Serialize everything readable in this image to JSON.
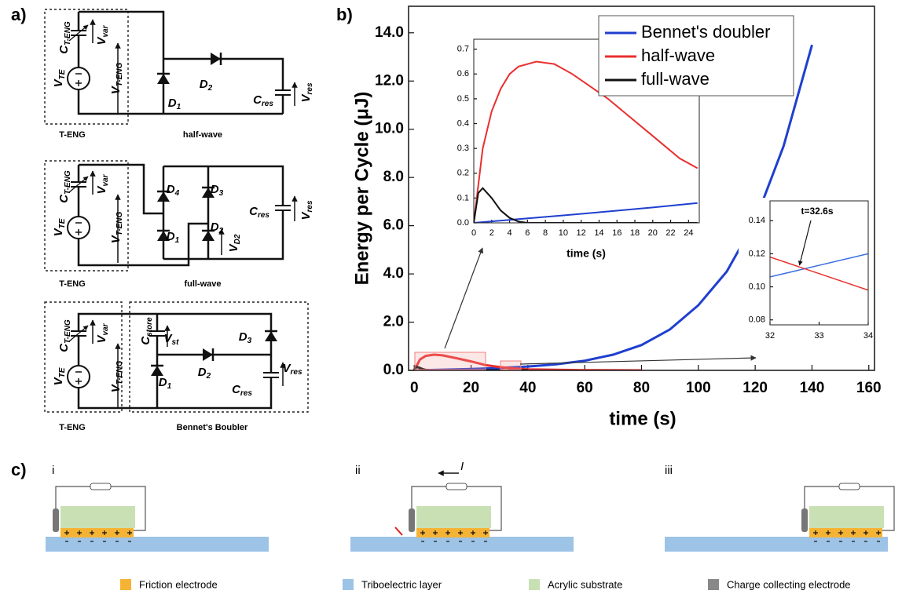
{
  "panel_labels": {
    "a": "a)",
    "b": "b)",
    "c": "c)"
  },
  "circuits": [
    {
      "labels": [
        {
          "base": "V",
          "sub": "TE"
        },
        {
          "base": "C",
          "sub": "T-ENG"
        },
        {
          "base": "V",
          "sub": "var"
        },
        {
          "base": "V",
          "sub": "T-ENG"
        },
        {
          "base": "D",
          "sub": "1"
        },
        {
          "base": "D",
          "sub": "2"
        },
        {
          "base": "C",
          "sub": "res"
        },
        {
          "base": "V",
          "sub": "res"
        }
      ],
      "source_label": "T-ENG",
      "caption": "half-wave"
    },
    {
      "labels": [
        {
          "base": "V",
          "sub": "TE"
        },
        {
          "base": "C",
          "sub": "T-ENG"
        },
        {
          "base": "V",
          "sub": "var"
        },
        {
          "base": "V",
          "sub": "T-ENG"
        },
        {
          "base": "D",
          "sub": "4"
        },
        {
          "base": "D",
          "sub": "3"
        },
        {
          "base": "D",
          "sub": "1"
        },
        {
          "base": "D",
          "sub": "2"
        },
        {
          "base": "V",
          "sub": "D2"
        },
        {
          "base": "C",
          "sub": "res"
        },
        {
          "base": "V",
          "sub": "res"
        }
      ],
      "source_label": "T-ENG",
      "caption": "full-wave"
    },
    {
      "labels": [
        {
          "base": "V",
          "sub": "TE"
        },
        {
          "base": "C",
          "sub": "T-ENG"
        },
        {
          "base": "V",
          "sub": "var"
        },
        {
          "base": "V",
          "sub": "T-ENG"
        },
        {
          "base": "C",
          "sub": "store"
        },
        {
          "base": "V",
          "sub": "st"
        },
        {
          "base": "D",
          "sub": "2"
        },
        {
          "base": "D",
          "sub": "3"
        },
        {
          "base": "D",
          "sub": "1"
        },
        {
          "base": "C",
          "sub": "res"
        },
        {
          "base": "V",
          "sub": "res"
        }
      ],
      "source_label": "T-ENG",
      "caption": "Bennet's Boubler"
    }
  ],
  "chart_data": [
    {
      "type": "line",
      "xlabel": "time (s)",
      "ylabel": "Energy per Cycle (μJ)",
      "xlim": [
        -2,
        162
      ],
      "xticks": [
        0,
        20,
        40,
        60,
        80,
        100,
        120,
        140,
        160
      ],
      "ylim": [
        0,
        15.1
      ],
      "yticks": [
        {
          "value": 0,
          "label": "0.0"
        },
        {
          "value": 2,
          "label": "2.0"
        },
        {
          "value": 4,
          "label": "4.0"
        },
        {
          "value": 6,
          "label": "6.0"
        },
        {
          "value": 8,
          "label": "8.0"
        },
        {
          "value": 10,
          "label": "10.0"
        },
        {
          "value": 12,
          "label": "12.0"
        },
        {
          "value": 14,
          "label": "14.0"
        }
      ],
      "legend_position": "upper right",
      "series": [
        {
          "name": "Bennet's doubler",
          "color": "#1f3fcf",
          "x": [
            0,
            10,
            20,
            30,
            40,
            50,
            60,
            70,
            80,
            90,
            100,
            110,
            120,
            130,
            140
          ],
          "values": [
            0,
            0.03,
            0.06,
            0.1,
            0.16,
            0.25,
            0.4,
            0.65,
            1.05,
            1.7,
            2.7,
            4.1,
            6.2,
            9.3,
            13.5
          ]
        },
        {
          "name": "half-wave",
          "color": "#e8302f",
          "x": [
            0,
            2,
            4,
            7,
            10,
            15,
            20,
            25,
            30,
            32.6,
            35,
            40,
            60,
            80
          ],
          "values": [
            0,
            0.45,
            0.6,
            0.65,
            0.62,
            0.5,
            0.37,
            0.22,
            0.14,
            0.11,
            0.08,
            0.04,
            0.01,
            0
          ]
        },
        {
          "name": "full-wave",
          "color": "#111111",
          "x": [
            0,
            0.5,
            1,
            2,
            3,
            4,
            5,
            6,
            40
          ],
          "values": [
            0,
            0.12,
            0.14,
            0.1,
            0.05,
            0.02,
            0.005,
            0,
            0
          ]
        }
      ]
    },
    {
      "type": "line",
      "xlabel": "time (s)",
      "xlim": [
        0,
        25.2
      ],
      "xticks": [
        0,
        2,
        4,
        6,
        8,
        10,
        12,
        14,
        16,
        18,
        20,
        22,
        24
      ],
      "ylim": [
        0,
        0.74
      ],
      "yticks": [
        {
          "value": 0,
          "label": "0.0"
        },
        0.1,
        0.2,
        0.3,
        0.4,
        0.5,
        0.6,
        0.7
      ],
      "series": [
        {
          "color": "#1f3fcf",
          "x": [
            0,
            5,
            10,
            15,
            20,
            25
          ],
          "values": [
            0,
            0.015,
            0.03,
            0.046,
            0.062,
            0.08
          ]
        },
        {
          "color": "#e8302f",
          "x": [
            0,
            1,
            2,
            3,
            4,
            5,
            7,
            9,
            11,
            13,
            15,
            17,
            19,
            21,
            23,
            25
          ],
          "values": [
            0,
            0.3,
            0.45,
            0.54,
            0.6,
            0.63,
            0.65,
            0.64,
            0.6,
            0.55,
            0.5,
            0.44,
            0.38,
            0.32,
            0.26,
            0.22
          ]
        },
        {
          "color": "#111111",
          "x": [
            0,
            0.5,
            1,
            2,
            3,
            4,
            5,
            6,
            25
          ],
          "values": [
            0,
            0.12,
            0.14,
            0.1,
            0.05,
            0.02,
            0.005,
            0,
            0
          ]
        }
      ]
    },
    {
      "type": "line",
      "annotation": "t=32.6s",
      "xlim": [
        32,
        34
      ],
      "xticks": [
        32,
        33,
        34
      ],
      "ylim": [
        0.077,
        0.152
      ],
      "yticks": [
        0.08,
        {
          "value": 0.1,
          "label": "0.10"
        },
        0.12,
        0.14
      ],
      "series": [
        {
          "color": "#3a6fe0",
          "x": [
            32,
            34
          ],
          "values": [
            0.106,
            0.12
          ]
        },
        {
          "color": "#e8302f",
          "x": [
            32,
            34
          ],
          "values": [
            0.118,
            0.098
          ]
        }
      ]
    }
  ],
  "stages": {
    "labels": [
      "i",
      "ii",
      "iii"
    ],
    "current": "I"
  },
  "legend": [
    "Friction electrode",
    "Triboelectric layer",
    "Acrylic substrate",
    "Charge collecting electrode"
  ]
}
